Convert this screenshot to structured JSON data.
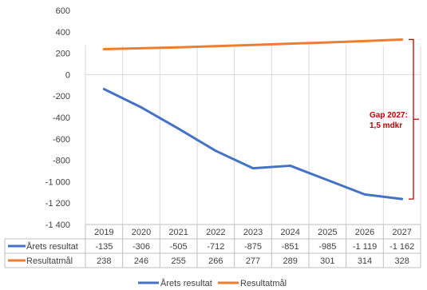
{
  "chart_data": {
    "type": "line",
    "title": "",
    "xlabel": "",
    "ylabel": "",
    "categories": [
      "2019",
      "2020",
      "2021",
      "2022",
      "2023",
      "2024",
      "2025",
      "2026",
      "2027"
    ],
    "yticks": [
      "600",
      "400",
      "200",
      "0",
      "-200",
      "-400",
      "-600",
      "-800",
      "-1 000",
      "-1 200",
      "-1 400"
    ],
    "ylim": [
      -1400,
      600
    ],
    "grid": "vertical",
    "legend_position": "bottom",
    "series": [
      {
        "name": "Årets resultat",
        "color": "#4472C4",
        "values": [
          -135,
          -306,
          -505,
          -712,
          -875,
          -851,
          -985,
          -1119,
          -1162
        ],
        "labels": [
          "-135",
          "-306",
          "-505",
          "-712",
          "-875",
          "-851",
          "-985",
          "-1 119",
          "-1 162"
        ]
      },
      {
        "name": "Resultatmål",
        "color": "#ED7D31",
        "values": [
          238,
          246,
          255,
          266,
          277,
          289,
          301,
          314,
          328
        ],
        "labels": [
          "238",
          "246",
          "255",
          "266",
          "277",
          "289",
          "301",
          "314",
          "328"
        ]
      }
    ],
    "annotation": {
      "lines": [
        "Gap 2027:",
        "1,5 mdkr"
      ],
      "color": "#C00000",
      "span": [
        328,
        -1162
      ]
    }
  }
}
